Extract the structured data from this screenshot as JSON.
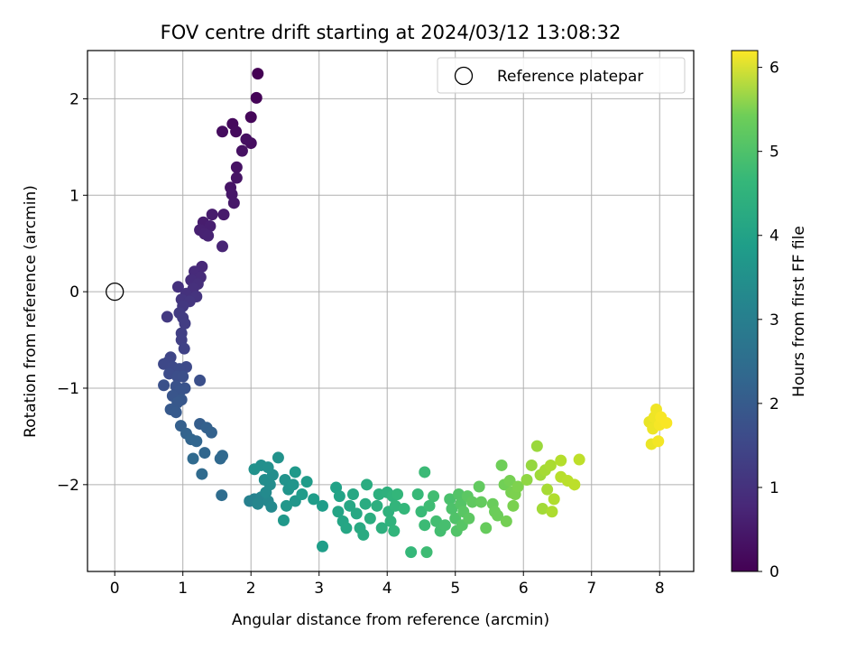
{
  "chart_data": {
    "type": "scatter",
    "title": "FOV centre drift starting at 2024/03/12 13:08:32",
    "xlabel": "Angular distance from reference (arcmin)",
    "ylabel": "Rotation from reference (arcmin)",
    "xlim": [
      -0.4,
      8.5
    ],
    "ylim": [
      -2.9,
      2.5
    ],
    "xticks": [
      0,
      1,
      2,
      3,
      4,
      5,
      6,
      7,
      8
    ],
    "yticks": [
      -2,
      -1,
      0,
      1,
      2
    ],
    "xtick_labels": [
      "0",
      "1",
      "2",
      "3",
      "4",
      "5",
      "6",
      "7",
      "8"
    ],
    "ytick_labels": [
      "−2",
      "−1",
      "0",
      "1",
      "2"
    ],
    "grid": true,
    "legend": {
      "position": "top-right",
      "entries": [
        "Reference platepar"
      ]
    },
    "colorbar": {
      "label": "Hours from first FF file",
      "colormap": "viridis",
      "range": [
        0,
        6.2
      ],
      "ticks": [
        0,
        1,
        2,
        3,
        4,
        5,
        6
      ],
      "tick_labels": [
        "0",
        "1",
        "2",
        "3",
        "4",
        "5",
        "6"
      ]
    },
    "series": [
      {
        "name": "Reference platepar",
        "marker": "open-circle",
        "color": "#000000",
        "points": [
          [
            0,
            0
          ]
        ]
      },
      {
        "color_by": "hours",
        "marker": "filled-circle",
        "points": [
          [
            2.1,
            2.26,
            0.0
          ],
          [
            2.08,
            2.01,
            0.05
          ],
          [
            2.0,
            1.81,
            0.1
          ],
          [
            1.73,
            1.74,
            0.15
          ],
          [
            1.78,
            1.66,
            0.18
          ],
          [
            1.58,
            1.66,
            0.2
          ],
          [
            2.0,
            1.54,
            0.22
          ],
          [
            1.93,
            1.58,
            0.25
          ],
          [
            1.87,
            1.46,
            0.28
          ],
          [
            1.79,
            1.29,
            0.3
          ],
          [
            1.79,
            1.18,
            0.33
          ],
          [
            1.7,
            1.08,
            0.35
          ],
          [
            1.72,
            1.01,
            0.38
          ],
          [
            1.75,
            0.92,
            0.4
          ],
          [
            1.6,
            0.8,
            0.45
          ],
          [
            1.43,
            0.8,
            0.48
          ],
          [
            1.3,
            0.72,
            0.5
          ],
          [
            1.4,
            0.68,
            0.53
          ],
          [
            1.25,
            0.64,
            0.55
          ],
          [
            1.32,
            0.6,
            0.58
          ],
          [
            1.37,
            0.58,
            0.6
          ],
          [
            1.58,
            0.47,
            0.63
          ],
          [
            1.28,
            0.26,
            0.7
          ],
          [
            1.17,
            0.21,
            0.75
          ],
          [
            1.26,
            0.15,
            0.78
          ],
          [
            1.12,
            0.12,
            0.8
          ],
          [
            1.22,
            0.08,
            0.83
          ],
          [
            1.15,
            0.03,
            0.86
          ],
          [
            0.93,
            0.05,
            0.88
          ],
          [
            1.05,
            -0.02,
            0.9
          ],
          [
            1.2,
            -0.05,
            0.93
          ],
          [
            0.98,
            -0.08,
            0.96
          ],
          [
            1.1,
            -0.1,
            0.99
          ],
          [
            1.0,
            -0.15,
            1.02
          ],
          [
            0.77,
            -0.26,
            1.05
          ],
          [
            0.95,
            -0.22,
            1.08
          ],
          [
            1.0,
            -0.27,
            1.1
          ],
          [
            1.03,
            -0.33,
            1.13
          ],
          [
            0.98,
            -0.43,
            1.16
          ],
          [
            0.98,
            -0.5,
            1.2
          ],
          [
            1.02,
            -0.59,
            1.24
          ],
          [
            0.82,
            -0.68,
            1.3
          ],
          [
            0.78,
            -0.73,
            1.33
          ],
          [
            0.72,
            -0.75,
            1.35
          ],
          [
            0.85,
            -0.78,
            1.38
          ],
          [
            1.05,
            -0.78,
            1.4
          ],
          [
            0.95,
            -0.8,
            1.43
          ],
          [
            0.8,
            -0.85,
            1.45
          ],
          [
            0.92,
            -0.88,
            1.48
          ],
          [
            1.0,
            -0.88,
            1.5
          ],
          [
            1.25,
            -0.92,
            1.52
          ],
          [
            0.72,
            -0.97,
            1.55
          ],
          [
            0.9,
            -0.98,
            1.58
          ],
          [
            1.03,
            -1.0,
            1.6
          ],
          [
            0.96,
            -1.03,
            1.63
          ],
          [
            0.85,
            -1.08,
            1.65
          ],
          [
            0.98,
            -1.12,
            1.68
          ],
          [
            0.92,
            -1.15,
            1.7
          ],
          [
            0.82,
            -1.22,
            1.73
          ],
          [
            0.9,
            -1.25,
            1.76
          ],
          [
            1.25,
            -1.37,
            1.85
          ],
          [
            0.97,
            -1.39,
            1.88
          ],
          [
            1.35,
            -1.41,
            1.9
          ],
          [
            1.42,
            -1.46,
            1.93
          ],
          [
            1.05,
            -1.47,
            1.96
          ],
          [
            1.12,
            -1.53,
            1.99
          ],
          [
            1.2,
            -1.55,
            2.02
          ],
          [
            1.32,
            -1.67,
            2.05
          ],
          [
            1.58,
            -1.7,
            2.08
          ],
          [
            1.55,
            -1.73,
            2.1
          ],
          [
            1.15,
            -1.73,
            2.12
          ],
          [
            1.28,
            -1.89,
            2.15
          ],
          [
            1.57,
            -2.11,
            2.2
          ],
          [
            1.98,
            -2.17,
            2.7
          ],
          [
            2.05,
            -2.15,
            2.75
          ],
          [
            2.15,
            -2.13,
            2.8
          ],
          [
            2.1,
            -2.2,
            2.85
          ],
          [
            2.25,
            -2.17,
            2.88
          ],
          [
            2.3,
            -2.23,
            2.92
          ],
          [
            2.22,
            -2.08,
            2.95
          ],
          [
            2.28,
            -2.0,
            3.0
          ],
          [
            2.2,
            -1.95,
            3.02
          ],
          [
            2.32,
            -1.9,
            3.05
          ],
          [
            2.15,
            -1.8,
            3.08
          ],
          [
            2.25,
            -1.82,
            3.1
          ],
          [
            2.05,
            -1.84,
            3.12
          ],
          [
            2.4,
            -1.72,
            3.15
          ],
          [
            2.5,
            -1.95,
            3.18
          ],
          [
            2.55,
            -2.05,
            3.2
          ],
          [
            2.62,
            -2.0,
            3.22
          ],
          [
            2.65,
            -2.17,
            3.25
          ],
          [
            2.52,
            -2.22,
            3.28
          ],
          [
            2.48,
            -2.37,
            3.3
          ],
          [
            2.65,
            -1.87,
            3.33
          ],
          [
            2.75,
            -2.1,
            3.36
          ],
          [
            2.82,
            -1.97,
            3.38
          ],
          [
            2.92,
            -2.15,
            3.4
          ],
          [
            3.05,
            -2.22,
            3.42
          ],
          [
            3.05,
            -2.64,
            3.45
          ],
          [
            3.25,
            -2.03,
            3.55
          ],
          [
            3.3,
            -2.12,
            3.58
          ],
          [
            3.28,
            -2.28,
            3.6
          ],
          [
            3.35,
            -2.38,
            3.63
          ],
          [
            3.4,
            -2.45,
            3.66
          ],
          [
            3.45,
            -2.22,
            3.68
          ],
          [
            3.5,
            -2.1,
            3.7
          ],
          [
            3.55,
            -2.3,
            3.72
          ],
          [
            3.6,
            -2.45,
            3.75
          ],
          [
            3.65,
            -2.52,
            3.78
          ],
          [
            3.68,
            -2.2,
            3.8
          ],
          [
            3.7,
            -2.0,
            3.82
          ],
          [
            3.75,
            -2.35,
            3.85
          ],
          [
            3.85,
            -2.22,
            3.88
          ],
          [
            3.88,
            -2.1,
            3.9
          ],
          [
            3.92,
            -2.45,
            3.92
          ],
          [
            4.0,
            -2.08,
            3.95
          ],
          [
            4.02,
            -2.28,
            3.98
          ],
          [
            4.05,
            -2.38,
            4.0
          ],
          [
            4.08,
            -2.12,
            4.02
          ],
          [
            4.1,
            -2.48,
            4.04
          ],
          [
            4.12,
            -2.22,
            4.06
          ],
          [
            4.15,
            -2.1,
            4.08
          ],
          [
            4.25,
            -2.25,
            4.1
          ],
          [
            4.35,
            -2.7,
            4.13
          ],
          [
            4.45,
            -2.1,
            4.16
          ],
          [
            4.5,
            -2.28,
            4.18
          ],
          [
            4.55,
            -1.87,
            4.2
          ],
          [
            4.55,
            -2.42,
            4.22
          ],
          [
            4.58,
            -2.7,
            4.24
          ],
          [
            4.62,
            -2.22,
            4.26
          ],
          [
            4.68,
            -2.12,
            4.28
          ],
          [
            4.72,
            -2.38,
            4.3
          ],
          [
            4.78,
            -2.48,
            4.32
          ],
          [
            4.85,
            -2.42,
            4.35
          ],
          [
            4.92,
            -2.15,
            4.4
          ],
          [
            4.95,
            -2.25,
            4.43
          ],
          [
            5.0,
            -2.35,
            4.46
          ],
          [
            5.02,
            -2.48,
            4.48
          ],
          [
            5.05,
            -2.1,
            4.5
          ],
          [
            5.08,
            -2.2,
            4.52
          ],
          [
            5.1,
            -2.42,
            4.55
          ],
          [
            5.12,
            -2.28,
            4.57
          ],
          [
            5.18,
            -2.12,
            4.6
          ],
          [
            5.2,
            -2.35,
            4.62
          ],
          [
            5.25,
            -2.18,
            4.65
          ],
          [
            5.35,
            -2.02,
            4.68
          ],
          [
            5.38,
            -2.18,
            4.7
          ],
          [
            5.45,
            -2.45,
            4.73
          ],
          [
            5.55,
            -2.2,
            4.76
          ],
          [
            5.58,
            -2.28,
            4.78
          ],
          [
            5.62,
            -2.32,
            4.8
          ],
          [
            5.68,
            -1.8,
            4.82
          ],
          [
            5.72,
            -2.0,
            4.85
          ],
          [
            5.75,
            -2.38,
            4.88
          ],
          [
            5.8,
            -1.96,
            4.9
          ],
          [
            5.82,
            -2.08,
            4.92
          ],
          [
            5.85,
            -2.22,
            4.94
          ],
          [
            5.88,
            -2.1,
            4.96
          ],
          [
            5.92,
            -2.02,
            4.98
          ],
          [
            6.05,
            -1.95,
            5.15
          ],
          [
            6.12,
            -1.8,
            5.2
          ],
          [
            6.2,
            -1.6,
            5.25
          ],
          [
            6.25,
            -1.9,
            5.3
          ],
          [
            6.28,
            -2.25,
            5.33
          ],
          [
            6.32,
            -1.85,
            5.36
          ],
          [
            6.35,
            -2.05,
            5.38
          ],
          [
            6.4,
            -1.8,
            5.4
          ],
          [
            6.42,
            -2.28,
            5.43
          ],
          [
            6.45,
            -2.15,
            5.46
          ],
          [
            6.55,
            -1.75,
            5.5
          ],
          [
            6.55,
            -1.92,
            5.53
          ],
          [
            6.65,
            -1.96,
            5.56
          ],
          [
            6.75,
            -2.0,
            5.58
          ],
          [
            6.82,
            -1.74,
            5.6
          ],
          [
            7.85,
            -1.35,
            6.0
          ],
          [
            7.88,
            -1.58,
            6.02
          ],
          [
            7.9,
            -1.42,
            6.04
          ],
          [
            7.92,
            -1.3,
            6.06
          ],
          [
            7.95,
            -1.22,
            6.08
          ],
          [
            7.98,
            -1.55,
            6.1
          ],
          [
            8.0,
            -1.38,
            6.12
          ],
          [
            8.02,
            -1.3,
            6.14
          ],
          [
            8.1,
            -1.36,
            6.16
          ]
        ]
      }
    ]
  }
}
